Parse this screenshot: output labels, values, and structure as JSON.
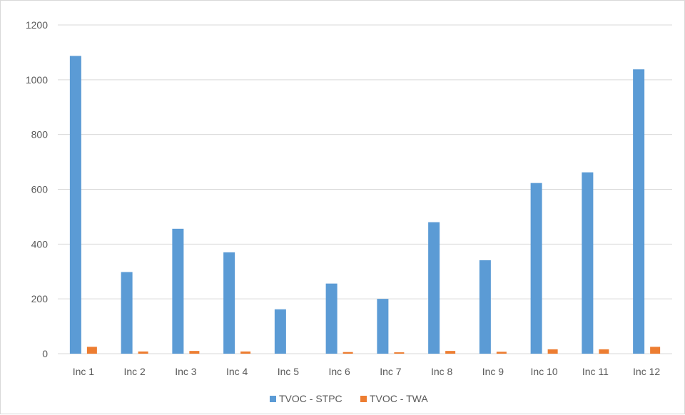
{
  "chart_data": {
    "type": "bar",
    "title": "",
    "xlabel": "",
    "ylabel": "",
    "categories": [
      "Inc 1",
      "Inc 2",
      "Inc 3",
      "Inc 4",
      "Inc 5",
      "Inc 6",
      "Inc 7",
      "Inc 8",
      "Inc 9",
      "Inc 10",
      "Inc 11",
      "Inc 12"
    ],
    "series": [
      {
        "name": "TVOC - STPC",
        "color": "#5b9bd5",
        "values": [
          1087,
          298,
          456,
          370,
          162,
          256,
          200,
          480,
          341,
          623,
          662,
          1038
        ]
      },
      {
        "name": "TVOC - TWA",
        "color": "#ed7d31",
        "values": [
          25,
          8,
          10,
          8,
          0,
          6,
          5,
          10,
          7,
          16,
          16,
          25
        ]
      }
    ],
    "ylim": [
      0,
      1200
    ],
    "yticks": [
      0,
      200,
      400,
      600,
      800,
      1000,
      1200
    ],
    "grid": true,
    "legend": "bottom-center",
    "gridColor": "#d9d9d9"
  }
}
